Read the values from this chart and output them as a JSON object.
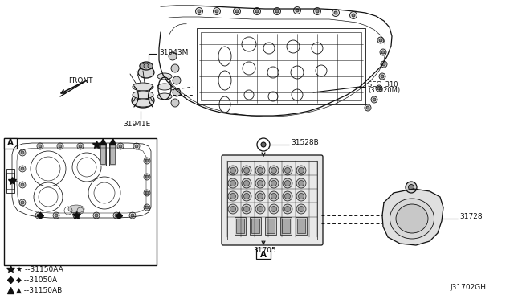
{
  "background_color": "#ffffff",
  "fig_width": 6.4,
  "fig_height": 3.72,
  "dpi": 100,
  "labels": {
    "front": "FRONT",
    "sec310_line1": "SEC. 310",
    "sec310_line2": "(31020M)",
    "part_31943M": "31943M",
    "part_31941E": "31941E",
    "part_31528B": "31528B",
    "part_31705": "31705",
    "part_31728": "31728",
    "legend_star": "★ --31150AA",
    "legend_diamond": "◆ --31050A",
    "legend_triangle": "▲ --31150AB",
    "diagram_id": "J31702GH",
    "view_A": "A"
  },
  "colors": {
    "line": "#111111",
    "text": "#111111",
    "background": "#ffffff"
  }
}
